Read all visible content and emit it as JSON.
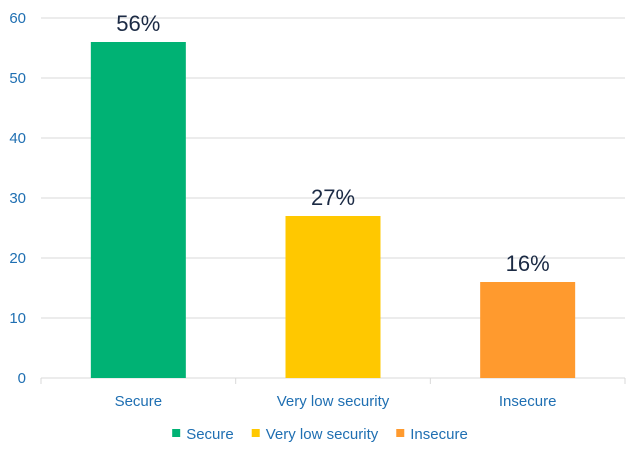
{
  "chart_data": {
    "type": "bar",
    "categories": [
      "Secure",
      "Very low security",
      "Insecure"
    ],
    "values": [
      56,
      27,
      16
    ],
    "data_labels": [
      "56%",
      "27%",
      "16%"
    ],
    "colors": [
      "#00b274",
      "#ffc800",
      "#ff9a2e"
    ],
    "ylim": [
      0,
      60
    ],
    "yticks": [
      0,
      10,
      20,
      30,
      40,
      50,
      60
    ],
    "grid": true,
    "legend": {
      "placement": "bottom",
      "entries": [
        "Secure",
        "Very low security",
        "Insecure"
      ]
    },
    "title": "",
    "xlabel": "",
    "ylabel": ""
  }
}
